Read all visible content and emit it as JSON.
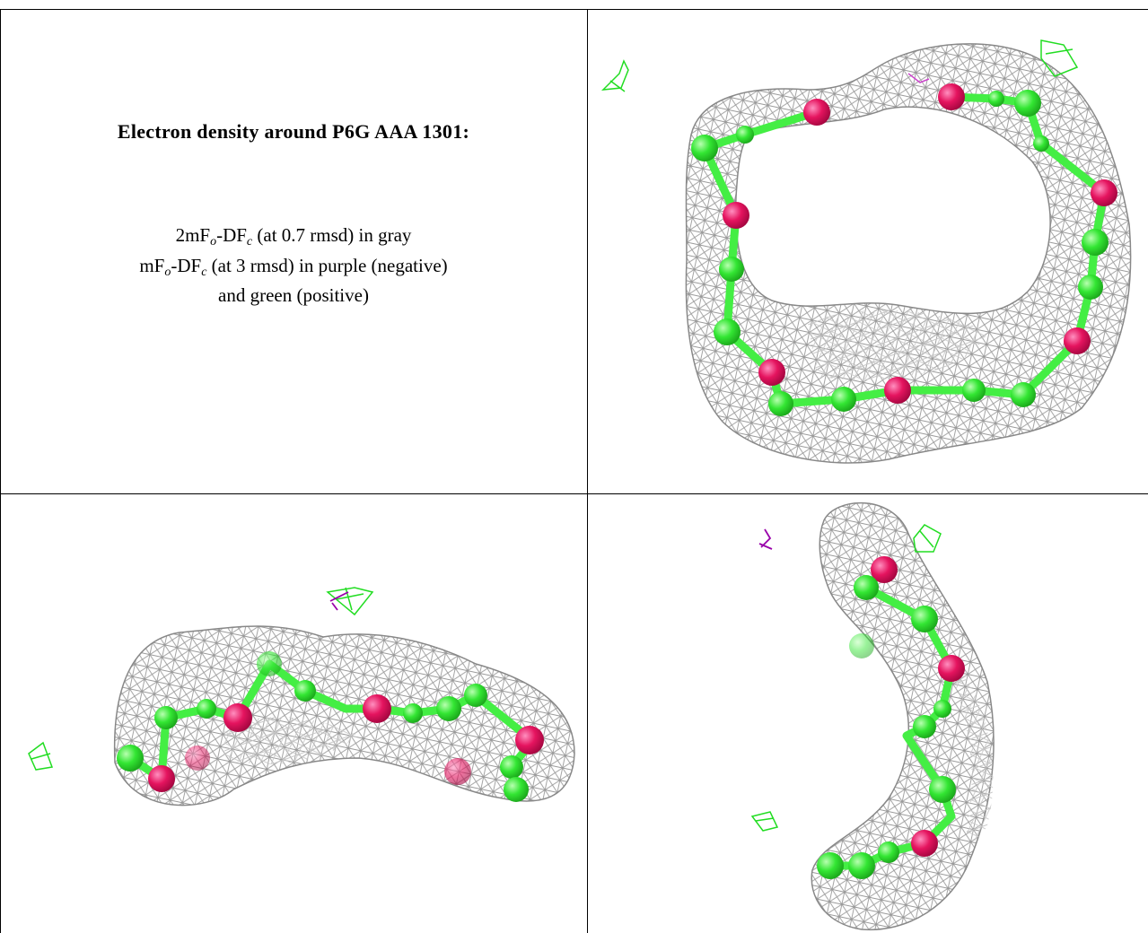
{
  "header": {
    "title": "Electron density around P6G AAA 1301:"
  },
  "legend": {
    "lines": [
      [
        "2mF",
        "o",
        "-DF",
        "c",
        " (at 0.7 rmsd) in gray"
      ],
      [
        "mF",
        "o",
        "-DF",
        "c",
        " (at 3 rmsd) in purple (negative)"
      ],
      [
        "and green (positive)"
      ]
    ]
  }
}
